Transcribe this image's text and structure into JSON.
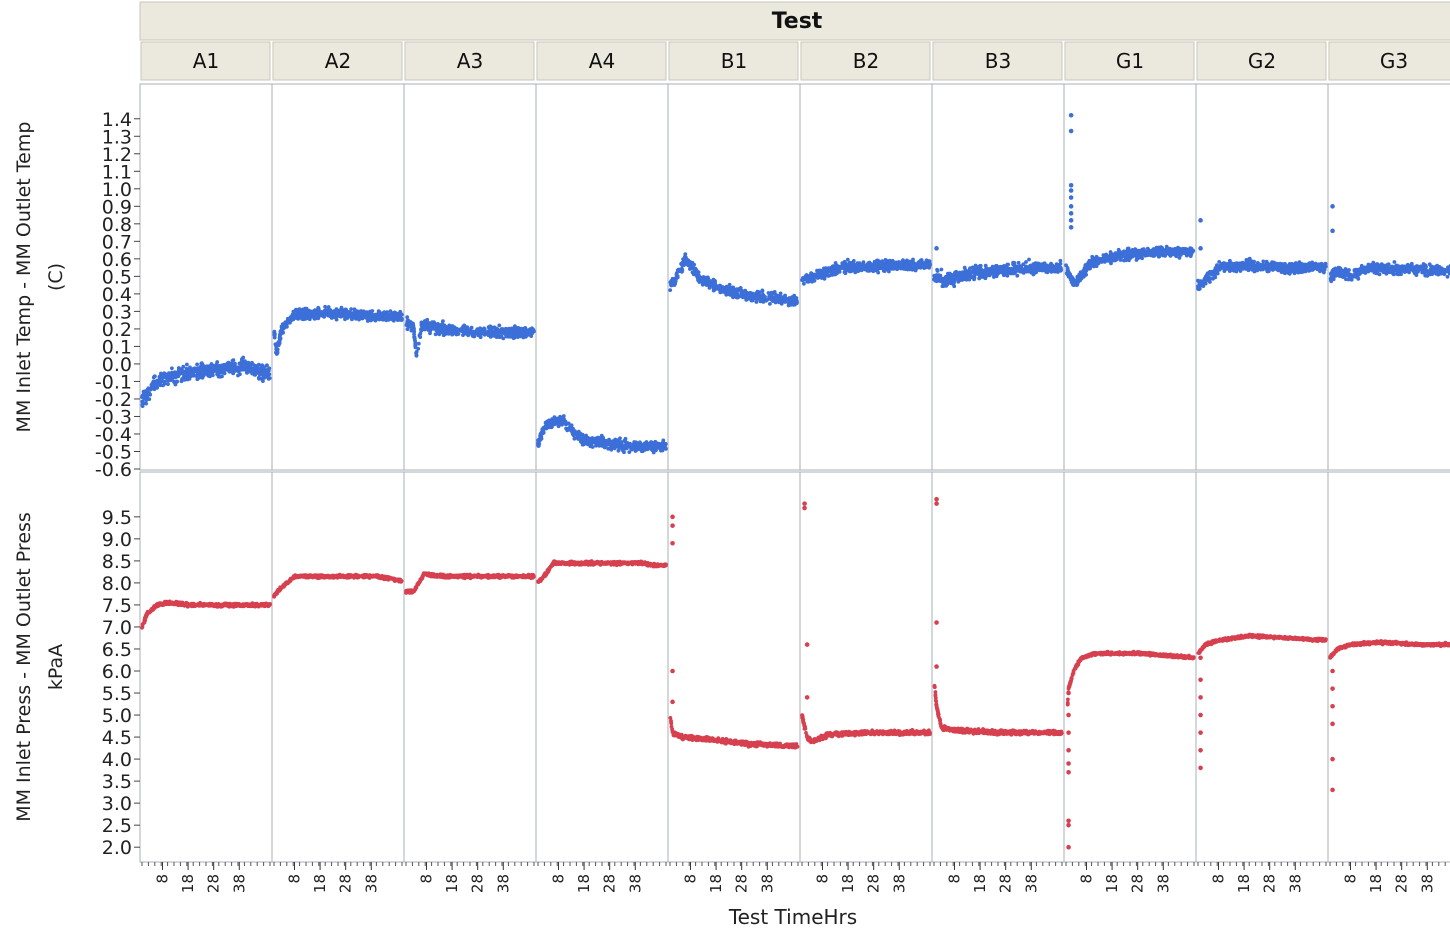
{
  "chart_data": {
    "type": "scatter",
    "title": "",
    "group_header": "Test",
    "panels": [
      "A1",
      "A2",
      "A3",
      "A4",
      "B1",
      "B2",
      "B3",
      "G1",
      "G2",
      "G3"
    ],
    "xlabel": "Test TimeHrs",
    "xticks": [
      8,
      18,
      28,
      38
    ],
    "xlim": [
      0,
      50
    ],
    "grid": false,
    "legend": "none",
    "rows": [
      {
        "name": "temp",
        "ylabel_line1": "MM Inlet Temp - MM Outlet Temp",
        "ylabel_line2": "(C)",
        "ylim": [
          -0.6,
          1.45
        ],
        "yticks": [
          "1.4",
          "1.3",
          "1.2",
          "1.1",
          "1.0",
          "0.9",
          "0.8",
          "0.7",
          "0.6",
          "0.5",
          "0.4",
          "0.3",
          "0.2",
          "0.1",
          "0.0",
          "-0.1",
          "-0.2",
          "-0.3",
          "-0.4",
          "-0.5",
          "-0.6"
        ],
        "color": "#3c6fd8",
        "series": [
          {
            "panel": "A1",
            "values": [
              [
                0,
                -0.2
              ],
              [
                2,
                -0.18
              ],
              [
                4,
                -0.12
              ],
              [
                10,
                -0.08
              ],
              [
                20,
                -0.05
              ],
              [
                30,
                -0.03
              ],
              [
                40,
                -0.01
              ],
              [
                50,
                -0.06
              ]
            ],
            "spread": 0.07
          },
          {
            "panel": "A2",
            "values": [
              [
                0,
                0.2
              ],
              [
                1,
                0.05
              ],
              [
                3,
                0.2
              ],
              [
                8,
                0.28
              ],
              [
                20,
                0.29
              ],
              [
                35,
                0.28
              ],
              [
                50,
                0.27
              ]
            ],
            "spread": 0.05
          },
          {
            "panel": "A3",
            "values": [
              [
                0,
                0.24
              ],
              [
                3,
                0.2
              ],
              [
                4,
                0.05
              ],
              [
                6,
                0.22
              ],
              [
                15,
                0.2
              ],
              [
                30,
                0.18
              ],
              [
                50,
                0.18
              ]
            ],
            "spread": 0.05
          },
          {
            "panel": "A4",
            "values": [
              [
                0,
                -0.45
              ],
              [
                3,
                -0.35
              ],
              [
                10,
                -0.32
              ],
              [
                14,
                -0.4
              ],
              [
                20,
                -0.44
              ],
              [
                35,
                -0.47
              ],
              [
                50,
                -0.47
              ]
            ],
            "spread": 0.05
          },
          {
            "panel": "B1",
            "values": [
              [
                0,
                0.45
              ],
              [
                2,
                0.48
              ],
              [
                6,
                0.6
              ],
              [
                12,
                0.48
              ],
              [
                22,
                0.42
              ],
              [
                35,
                0.38
              ],
              [
                50,
                0.36
              ]
            ],
            "spread": 0.05
          },
          {
            "panel": "B2",
            "values": [
              [
                0,
                0.48
              ],
              [
                5,
                0.5
              ],
              [
                15,
                0.55
              ],
              [
                30,
                0.56
              ],
              [
                50,
                0.57
              ]
            ],
            "spread": 0.05
          },
          {
            "panel": "B3",
            "values": [
              [
                0,
                0.5
              ],
              [
                5,
                0.48
              ],
              [
                15,
                0.52
              ],
              [
                30,
                0.54
              ],
              [
                50,
                0.55
              ]
            ],
            "spread": 0.06
          },
          {
            "panel": "G1",
            "values": [
              [
                0,
                0.55
              ],
              [
                3,
                0.45
              ],
              [
                6,
                0.5
              ],
              [
                10,
                0.58
              ],
              [
                20,
                0.62
              ],
              [
                35,
                0.64
              ],
              [
                50,
                0.64
              ]
            ],
            "spread": 0.05
          },
          {
            "panel": "G2",
            "values": [
              [
                0,
                0.45
              ],
              [
                3,
                0.48
              ],
              [
                8,
                0.55
              ],
              [
                20,
                0.56
              ],
              [
                35,
                0.55
              ],
              [
                50,
                0.55
              ]
            ],
            "spread": 0.05
          },
          {
            "panel": "G3",
            "values": [
              [
                0,
                0.5
              ],
              [
                3,
                0.53
              ],
              [
                8,
                0.5
              ],
              [
                15,
                0.55
              ],
              [
                30,
                0.54
              ],
              [
                50,
                0.53
              ]
            ],
            "spread": 0.05
          }
        ],
        "outliers": [
          {
            "panel": "G1",
            "values": [
              [
                2,
                1.42
              ],
              [
                2,
                1.33
              ],
              [
                2,
                1.02
              ],
              [
                2,
                0.99
              ],
              [
                2,
                0.95
              ],
              [
                2,
                0.9
              ],
              [
                2,
                0.86
              ],
              [
                2,
                0.82
              ],
              [
                2,
                0.78
              ]
            ]
          },
          {
            "panel": "G2",
            "values": [
              [
                1,
                0.82
              ],
              [
                1,
                0.66
              ]
            ]
          },
          {
            "panel": "G3",
            "values": [
              [
                1,
                0.9
              ],
              [
                1,
                0.76
              ]
            ]
          },
          {
            "panel": "B3",
            "values": [
              [
                1,
                0.66
              ]
            ]
          }
        ]
      },
      {
        "name": "press",
        "ylabel_line1": "MM Inlet Press - MM Outlet Press",
        "ylabel_line2": "kPaA",
        "ylim": [
          1.8,
          10.2
        ],
        "yticks": [
          "9.5",
          "9.0",
          "8.5",
          "8.0",
          "7.5",
          "7.0",
          "6.5",
          "6.0",
          "5.5",
          "5.0",
          "4.5",
          "4.0",
          "3.5",
          "3.0",
          "2.5",
          "2.0"
        ],
        "color": "#d6404f",
        "series": [
          {
            "panel": "A1",
            "values": [
              [
                0,
                7.0
              ],
              [
                2,
                7.3
              ],
              [
                6,
                7.5
              ],
              [
                10,
                7.55
              ],
              [
                20,
                7.5
              ],
              [
                35,
                7.5
              ],
              [
                50,
                7.5
              ]
            ],
            "spread": 0.06
          },
          {
            "panel": "A2",
            "values": [
              [
                0,
                7.7
              ],
              [
                3,
                7.9
              ],
              [
                8,
                8.15
              ],
              [
                20,
                8.15
              ],
              [
                40,
                8.15
              ],
              [
                50,
                8.05
              ]
            ],
            "spread": 0.06
          },
          {
            "panel": "A3",
            "values": [
              [
                0,
                7.8
              ],
              [
                3,
                7.8
              ],
              [
                7,
                8.2
              ],
              [
                15,
                8.15
              ],
              [
                30,
                8.15
              ],
              [
                50,
                8.15
              ]
            ],
            "spread": 0.06
          },
          {
            "panel": "A4",
            "values": [
              [
                0,
                8.0
              ],
              [
                3,
                8.2
              ],
              [
                6,
                8.45
              ],
              [
                25,
                8.45
              ],
              [
                40,
                8.45
              ],
              [
                45,
                8.4
              ],
              [
                50,
                8.4
              ]
            ],
            "spread": 0.06
          },
          {
            "panel": "B1",
            "values": [
              [
                0,
                5.0
              ],
              [
                1,
                4.6
              ],
              [
                5,
                4.5
              ],
              [
                15,
                4.45
              ],
              [
                30,
                4.35
              ],
              [
                50,
                4.3
              ]
            ],
            "spread": 0.08
          },
          {
            "panel": "B2",
            "values": [
              [
                0,
                5.0
              ],
              [
                2,
                4.5
              ],
              [
                4,
                4.4
              ],
              [
                10,
                4.55
              ],
              [
                25,
                4.6
              ],
              [
                50,
                4.6
              ]
            ],
            "spread": 0.08
          },
          {
            "panel": "B3",
            "values": [
              [
                0,
                5.8
              ],
              [
                1,
                5.2
              ],
              [
                3,
                4.7
              ],
              [
                10,
                4.65
              ],
              [
                25,
                4.6
              ],
              [
                50,
                4.6
              ]
            ],
            "spread": 0.08
          },
          {
            "panel": "G1",
            "values": [
              [
                0,
                4.5
              ],
              [
                1,
                5.6
              ],
              [
                3,
                6.0
              ],
              [
                6,
                6.3
              ],
              [
                12,
                6.4
              ],
              [
                30,
                6.4
              ],
              [
                50,
                6.3
              ]
            ],
            "spread": 0.05
          },
          {
            "panel": "G2",
            "values": [
              [
                0,
                6.4
              ],
              [
                3,
                6.6
              ],
              [
                8,
                6.7
              ],
              [
                20,
                6.8
              ],
              [
                35,
                6.75
              ],
              [
                50,
                6.7
              ]
            ],
            "spread": 0.05
          },
          {
            "panel": "G3",
            "values": [
              [
                0,
                6.3
              ],
              [
                3,
                6.5
              ],
              [
                8,
                6.6
              ],
              [
                20,
                6.65
              ],
              [
                35,
                6.6
              ],
              [
                50,
                6.6
              ]
            ],
            "spread": 0.05
          }
        ],
        "outliers": [
          {
            "panel": "B1",
            "values": [
              [
                1,
                9.5
              ],
              [
                1,
                9.3
              ],
              [
                1,
                8.9
              ],
              [
                1,
                6.0
              ],
              [
                1,
                5.3
              ]
            ]
          },
          {
            "panel": "B2",
            "values": [
              [
                1,
                9.8
              ],
              [
                1,
                9.7
              ],
              [
                2,
                6.6
              ],
              [
                2,
                5.4
              ]
            ]
          },
          {
            "panel": "B3",
            "values": [
              [
                1,
                9.9
              ],
              [
                1,
                9.8
              ],
              [
                1,
                7.1
              ],
              [
                1,
                6.1
              ]
            ]
          },
          {
            "panel": "G1",
            "values": [
              [
                1,
                5.5
              ],
              [
                1,
                5.0
              ],
              [
                1,
                4.6
              ],
              [
                1,
                4.2
              ],
              [
                1,
                3.9
              ],
              [
                1,
                3.7
              ],
              [
                1,
                2.6
              ],
              [
                1,
                2.5
              ],
              [
                1,
                2.0
              ]
            ]
          },
          {
            "panel": "G2",
            "values": [
              [
                1,
                6.3
              ],
              [
                1,
                5.8
              ],
              [
                1,
                5.4
              ],
              [
                1,
                5.0
              ],
              [
                1,
                4.6
              ],
              [
                1,
                4.2
              ],
              [
                1,
                3.8
              ]
            ]
          },
          {
            "panel": "G3",
            "values": [
              [
                1,
                6.0
              ],
              [
                1,
                5.6
              ],
              [
                1,
                5.2
              ],
              [
                1,
                4.8
              ],
              [
                1,
                4.0
              ],
              [
                1,
                3.3
              ]
            ]
          }
        ]
      }
    ]
  }
}
